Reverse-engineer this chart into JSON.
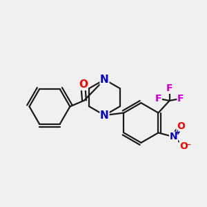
{
  "bg_color": "#f0f0f0",
  "bond_color": "#1a1a1a",
  "bond_width": 1.6,
  "atom_colors": {
    "O": "#ff0000",
    "N": "#0000cc",
    "F": "#cc00cc",
    "C": "#1a1a1a"
  },
  "font_size_atom": 10,
  "font_size_charge": 7,
  "figsize": [
    3.0,
    3.0
  ],
  "dpi": 100
}
